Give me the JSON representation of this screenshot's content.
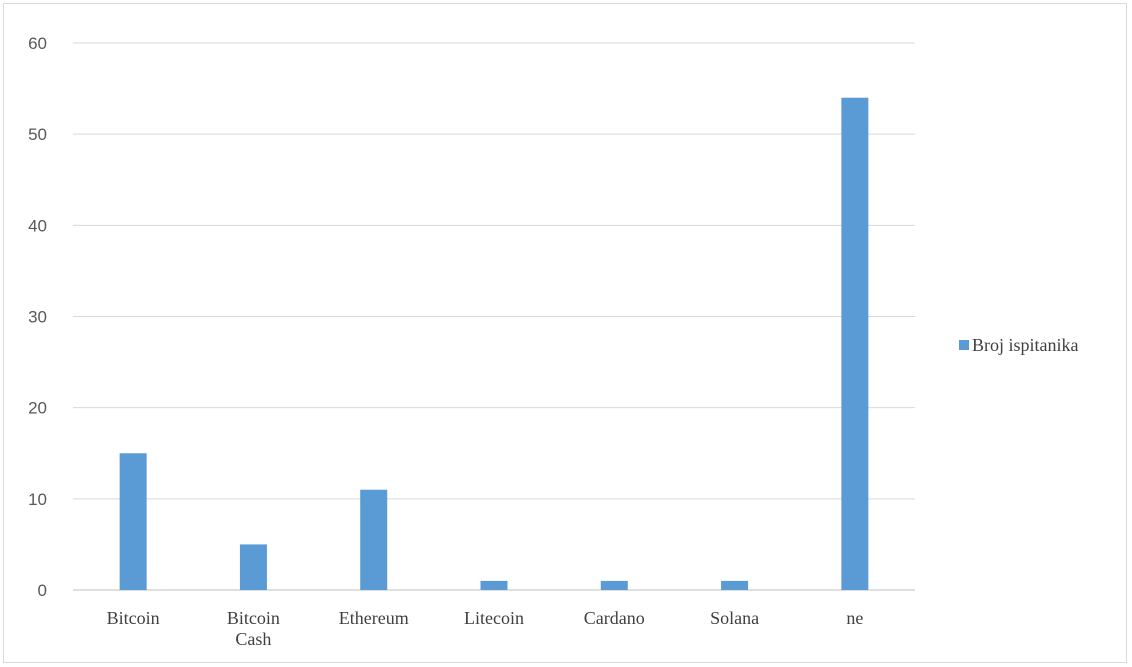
{
  "chart_data": {
    "type": "bar",
    "title": "",
    "xlabel": "",
    "ylabel": "",
    "categories": [
      [
        "Bitcoin"
      ],
      [
        "Bitcoin",
        "Cash"
      ],
      [
        "Ethereum"
      ],
      [
        "Litecoin"
      ],
      [
        "Cardano"
      ],
      [
        "Solana"
      ],
      [
        "ne"
      ]
    ],
    "series": [
      {
        "name": "Broj ispitanika",
        "values": [
          15,
          5,
          11,
          1,
          1,
          1,
          54
        ]
      }
    ],
    "ylim": [
      0,
      60
    ],
    "yticks": [
      0,
      10,
      20,
      30,
      40,
      50,
      60
    ],
    "grid": true,
    "legend_position": "right",
    "colors": {
      "bar": "#5b9bd5",
      "grid": "#d9d9d9",
      "axis": "#bfbfbf"
    }
  }
}
